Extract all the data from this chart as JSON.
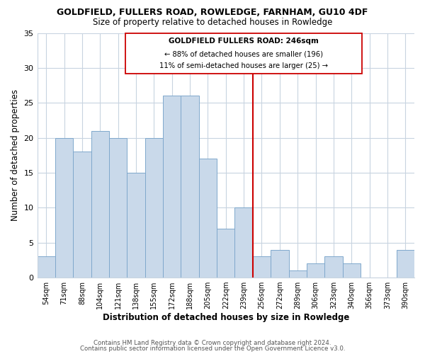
{
  "title": "GOLDFIELD, FULLERS ROAD, ROWLEDGE, FARNHAM, GU10 4DF",
  "subtitle": "Size of property relative to detached houses in Rowledge",
  "xlabel": "Distribution of detached houses by size in Rowledge",
  "ylabel": "Number of detached properties",
  "bar_color": "#c9d9ea",
  "bar_edge_color": "#7fa8cc",
  "categories": [
    "54sqm",
    "71sqm",
    "88sqm",
    "104sqm",
    "121sqm",
    "138sqm",
    "155sqm",
    "172sqm",
    "188sqm",
    "205sqm",
    "222sqm",
    "239sqm",
    "256sqm",
    "272sqm",
    "289sqm",
    "306sqm",
    "323sqm",
    "340sqm",
    "356sqm",
    "373sqm",
    "390sqm"
  ],
  "values": [
    3,
    20,
    18,
    21,
    20,
    15,
    20,
    26,
    26,
    17,
    7,
    10,
    3,
    4,
    1,
    2,
    3,
    2,
    0,
    0,
    4
  ],
  "ylim": [
    0,
    35
  ],
  "yticks": [
    0,
    5,
    10,
    15,
    20,
    25,
    30,
    35
  ],
  "vline_color": "#cc0000",
  "annotation_title": "GOLDFIELD FULLERS ROAD: 246sqm",
  "annotation_line1": "← 88% of detached houses are smaller (196)",
  "annotation_line2": "11% of semi-detached houses are larger (25) →",
  "footer1": "Contains HM Land Registry data © Crown copyright and database right 2024.",
  "footer2": "Contains public sector information licensed under the Open Government Licence v3.0.",
  "background_color": "#ffffff",
  "plot_bg_color": "#ffffff",
  "grid_color": "#c8d4e0"
}
